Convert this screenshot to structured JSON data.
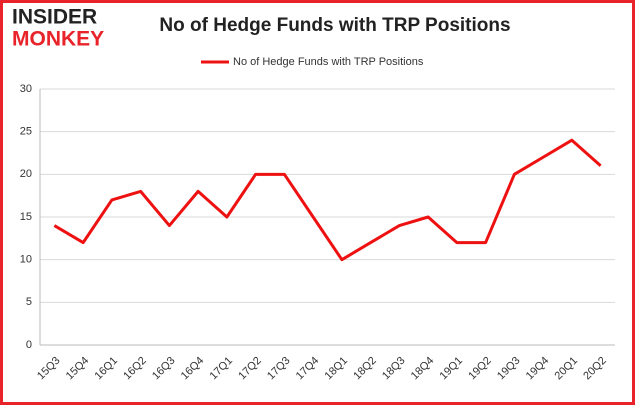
{
  "logo": {
    "line1": "INSIDER",
    "line2": "MONKEY"
  },
  "chart_data": {
    "type": "line",
    "title": "No of Hedge Funds with TRP Positions",
    "categories": [
      "15Q3",
      "15Q4",
      "16Q1",
      "16Q2",
      "16Q3",
      "16Q4",
      "17Q1",
      "17Q2",
      "17Q3",
      "17Q4",
      "18Q1",
      "18Q2",
      "18Q3",
      "18Q4",
      "19Q1",
      "19Q2",
      "19Q3",
      "19Q4",
      "20Q1",
      "20Q2"
    ],
    "series": [
      {
        "name": "No of Hedge Funds with TRP Positions",
        "color": "#ee1111",
        "values": [
          14,
          12,
          17,
          18,
          14,
          18,
          15,
          20,
          20,
          15,
          10,
          12,
          14,
          15,
          12,
          12,
          20,
          22,
          24,
          21
        ]
      }
    ],
    "ylim": [
      0,
      30
    ],
    "yticks": [
      0,
      5,
      10,
      15,
      20,
      25,
      30
    ],
    "grid": true,
    "legend": "top"
  }
}
